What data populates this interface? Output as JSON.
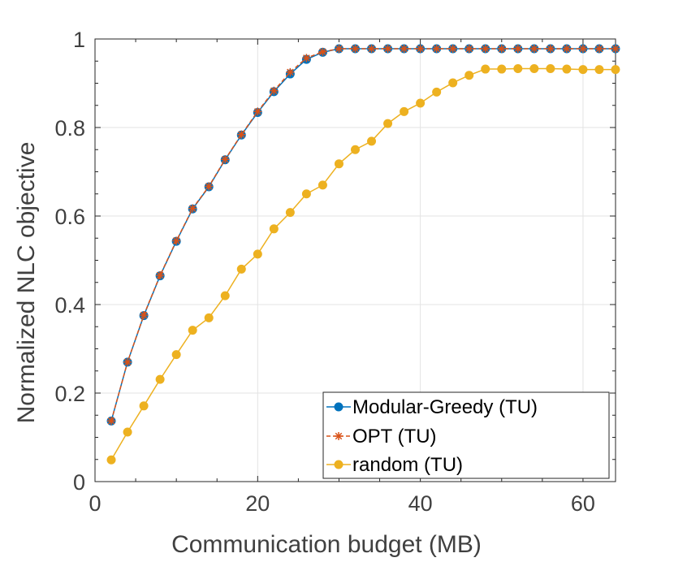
{
  "chart_data": {
    "type": "line",
    "xlabel": "Communication budget (MB)",
    "ylabel": "Normalized NLC objective",
    "xlim": [
      0,
      64
    ],
    "ylim": [
      0,
      1
    ],
    "xticks": [
      0,
      20,
      40,
      60
    ],
    "yticks": [
      0,
      0.2,
      0.4,
      0.6,
      0.8,
      1
    ],
    "xtick_labels": [
      "0",
      "20",
      "40",
      "60"
    ],
    "ytick_labels": [
      "0",
      "0.2",
      "0.4",
      "0.6",
      "0.8",
      "1"
    ],
    "grid": true,
    "legend_position": "bottom-right",
    "x": [
      2,
      4,
      6,
      8,
      10,
      12,
      14,
      16,
      18,
      20,
      22,
      24,
      26,
      28,
      30,
      32,
      34,
      36,
      38,
      40,
      42,
      44,
      46,
      48,
      50,
      52,
      54,
      56,
      58,
      60,
      62,
      64
    ],
    "series": [
      {
        "name": "Modular-Greedy (TU)",
        "color": "#0072BD",
        "marker": "circle",
        "line_style": "solid",
        "values": [
          0.137,
          0.27,
          0.375,
          0.465,
          0.543,
          0.616,
          0.666,
          0.727,
          0.783,
          0.834,
          0.881,
          0.921,
          0.954,
          0.97,
          0.978,
          0.978,
          0.978,
          0.978,
          0.978,
          0.978,
          0.978,
          0.978,
          0.978,
          0.978,
          0.978,
          0.978,
          0.978,
          0.978,
          0.978,
          0.978,
          0.978,
          0.978
        ]
      },
      {
        "name": "OPT (TU)",
        "color": "#D95319",
        "marker": "asterisk",
        "line_style": "dashed",
        "values": [
          0.137,
          0.27,
          0.376,
          0.466,
          0.544,
          0.617,
          0.667,
          0.728,
          0.784,
          0.836,
          0.883,
          0.925,
          0.957,
          0.971,
          0.978,
          0.978,
          0.978,
          0.978,
          0.978,
          0.978,
          0.978,
          0.978,
          0.978,
          0.978,
          0.978,
          0.978,
          0.978,
          0.978,
          0.978,
          0.978,
          0.978,
          0.978
        ]
      },
      {
        "name": "random (TU)",
        "color": "#EDB120",
        "marker": "circle",
        "line_style": "solid",
        "values": [
          0.049,
          0.112,
          0.171,
          0.231,
          0.287,
          0.342,
          0.37,
          0.42,
          0.48,
          0.514,
          0.571,
          0.608,
          0.65,
          0.67,
          0.718,
          0.75,
          0.769,
          0.809,
          0.836,
          0.855,
          0.88,
          0.901,
          0.918,
          0.932,
          0.932,
          0.933,
          0.933,
          0.933,
          0.932,
          0.931,
          0.931,
          0.931
        ]
      }
    ]
  }
}
